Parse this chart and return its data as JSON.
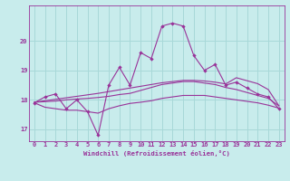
{
  "xlabel": "Windchill (Refroidissement éolien,°C)",
  "ylabel": "",
  "xlim": [
    -0.5,
    23.5
  ],
  "ylim": [
    16.6,
    21.2
  ],
  "yticks": [
    17,
    18,
    19,
    20
  ],
  "xticks": [
    0,
    1,
    2,
    3,
    4,
    5,
    6,
    7,
    8,
    9,
    10,
    11,
    12,
    13,
    14,
    15,
    16,
    17,
    18,
    19,
    20,
    21,
    22,
    23
  ],
  "bg_color": "#c8ecec",
  "grid_color": "#a8d8d8",
  "line_color": "#993399",
  "curve1": [
    17.9,
    18.1,
    18.2,
    17.7,
    18.0,
    17.6,
    16.8,
    18.5,
    19.1,
    18.5,
    19.6,
    19.4,
    20.5,
    20.6,
    20.5,
    19.5,
    19.0,
    19.2,
    18.5,
    18.6,
    18.4,
    18.2,
    18.1,
    17.7
  ],
  "curve2": [
    17.9,
    17.75,
    17.7,
    17.65,
    17.65,
    17.6,
    17.55,
    17.7,
    17.8,
    17.88,
    17.92,
    17.97,
    18.05,
    18.1,
    18.15,
    18.15,
    18.15,
    18.1,
    18.05,
    18.0,
    17.95,
    17.9,
    17.82,
    17.72
  ],
  "curve3": [
    17.92,
    17.94,
    17.96,
    18.0,
    18.03,
    18.05,
    18.08,
    18.12,
    18.18,
    18.22,
    18.32,
    18.42,
    18.52,
    18.57,
    18.62,
    18.62,
    18.57,
    18.52,
    18.42,
    18.35,
    18.25,
    18.15,
    18.05,
    17.8
  ],
  "curve4": [
    17.92,
    17.97,
    18.02,
    18.07,
    18.12,
    18.17,
    18.22,
    18.28,
    18.34,
    18.4,
    18.46,
    18.52,
    18.58,
    18.62,
    18.66,
    18.66,
    18.64,
    18.6,
    18.54,
    18.75,
    18.65,
    18.55,
    18.35,
    17.8
  ]
}
